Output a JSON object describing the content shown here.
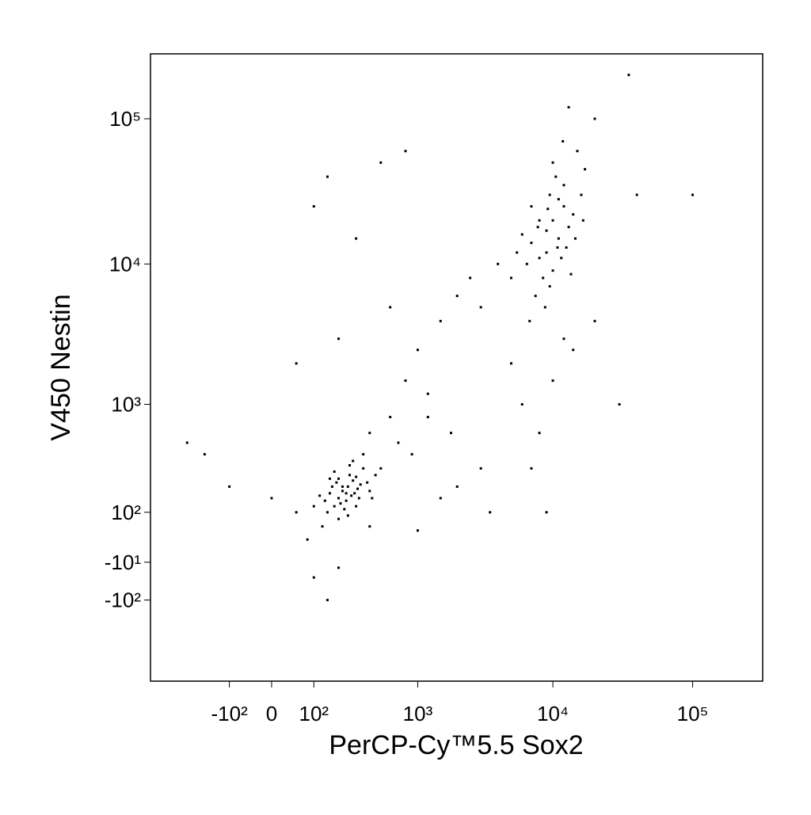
{
  "chart_data": {
    "type": "scatter",
    "xlabel": "PerCP-Cy™5.5 Sox2",
    "ylabel": "V450 Nestin",
    "xscale": "biexponential",
    "yscale": "biexponential",
    "color": "#000000",
    "xlim": [
      -630,
      316000
    ],
    "ylim": [
      -620,
      279000
    ],
    "xticks": [
      {
        "value": -100,
        "label": "-10²"
      },
      0,
      {
        "value": 100,
        "label": "10²"
      },
      {
        "value": 1000,
        "label": "10³"
      },
      {
        "value": 10000,
        "label": "10⁴"
      },
      {
        "value": 100000,
        "label": "10⁵"
      }
    ],
    "yticks": [
      {
        "value": -100,
        "label": "-10²"
      },
      {
        "value": -10,
        "label": "-10¹"
      },
      {
        "value": 100,
        "label": "10²"
      },
      {
        "value": 1000,
        "label": "10³"
      },
      {
        "value": 10000,
        "label": "10⁴"
      },
      {
        "value": 100000,
        "label": "10⁵"
      }
    ],
    "x": [
      200,
      250,
      180,
      300,
      220,
      270,
      150,
      350,
      190,
      240,
      310,
      160,
      280,
      210,
      330,
      260,
      170,
      230,
      290,
      200,
      140,
      380,
      250,
      320,
      180,
      400,
      120,
      260,
      300,
      220,
      450,
      100,
      350,
      200,
      500,
      130,
      280,
      420,
      160,
      240,
      9000,
      11000,
      8000,
      12000,
      10000,
      7000,
      13000,
      9500,
      8500,
      11500,
      6500,
      14000,
      10500,
      7500,
      12500,
      9000,
      16000,
      6000,
      10000,
      13500,
      8000,
      11000,
      15000,
      9500,
      7000,
      12000,
      17000,
      5500,
      10000,
      14500,
      8800,
      11800,
      20000,
      6800,
      13000,
      9200,
      7800,
      10800,
      16500,
      5000,
      600,
      800,
      1000,
      1500,
      2000,
      1200,
      700,
      3000,
      2500,
      4000,
      5000,
      6000,
      8000,
      10000,
      12000,
      7000,
      3000,
      2000,
      1500,
      900,
      1200,
      1800,
      500,
      800,
      150,
      100,
      300,
      600,
      200,
      400,
      14000,
      20000,
      30000,
      9000,
      3500,
      1000,
      100000,
      40000,
      35000,
      50,
      -300,
      -100,
      -200,
      0,
      50,
      100,
      150,
      80,
      200,
      400
    ],
    "y": [
      150,
      200,
      120,
      250,
      180,
      160,
      100,
      300,
      220,
      140,
      190,
      170,
      230,
      130,
      210,
      260,
      200,
      110,
      170,
      240,
      140,
      220,
      90,
      150,
      280,
      180,
      160,
      320,
      120,
      200,
      260,
      120,
      400,
      80,
      300,
      60,
      350,
      150,
      240,
      170,
      12000,
      15000,
      20000,
      25000,
      9000,
      14000,
      18000,
      30000,
      8000,
      11000,
      10000,
      22000,
      40000,
      6000,
      13000,
      17000,
      30000,
      16000,
      50000,
      8500,
      11000,
      28000,
      60000,
      7000,
      25000,
      35000,
      45000,
      12000,
      20000,
      15000,
      5000,
      70000,
      100000,
      4000,
      120000,
      24000,
      18000,
      13000,
      20000,
      8000,
      800,
      1500,
      2500,
      4000,
      6000,
      800,
      500,
      5000,
      8000,
      10000,
      2000,
      1000,
      600,
      1500,
      3000,
      300,
      300,
      200,
      150,
      400,
      1200,
      600,
      50000,
      60000,
      40000,
      25000,
      15000,
      5000,
      3000,
      600,
      2500,
      4000,
      1000,
      100,
      100,
      50,
      30000,
      30000,
      200000,
      2000,
      500,
      200,
      400,
      150,
      100,
      -40,
      -100,
      30,
      -20,
      60
    ]
  }
}
